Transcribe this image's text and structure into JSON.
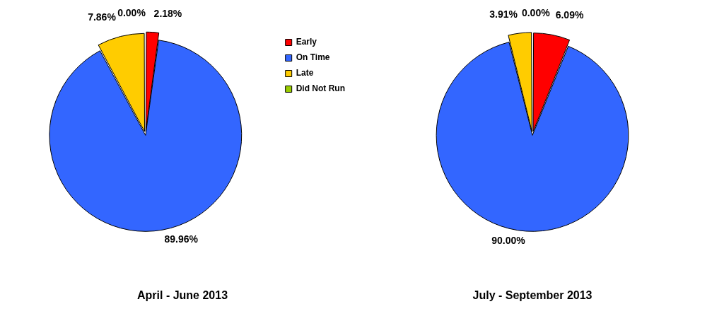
{
  "chart_data": [
    {
      "type": "pie",
      "title": "April - June 2013",
      "categories": [
        "Early",
        "On Time",
        "Late",
        "Did Not Run"
      ],
      "values": [
        2.18,
        89.96,
        7.86,
        0.0
      ],
      "colors": [
        "#ff0000",
        "#3366ff",
        "#ffcc00",
        "#99cc00"
      ],
      "value_labels": [
        "2.18%",
        "89.96%",
        "7.86%",
        "0.00%"
      ],
      "legend": "right"
    },
    {
      "type": "pie",
      "title": "July - September 2013",
      "categories": [
        null,
        null,
        null,
        null
      ],
      "values": [
        6.09,
        90.0,
        3.91,
        0.0
      ],
      "colors": [
        "#ff0000",
        "#3366ff",
        "#ffcc00",
        "#99cc00"
      ],
      "value_labels": [
        "6.09%",
        "90.00%",
        "3.91%",
        "0.00%"
      ]
    }
  ]
}
